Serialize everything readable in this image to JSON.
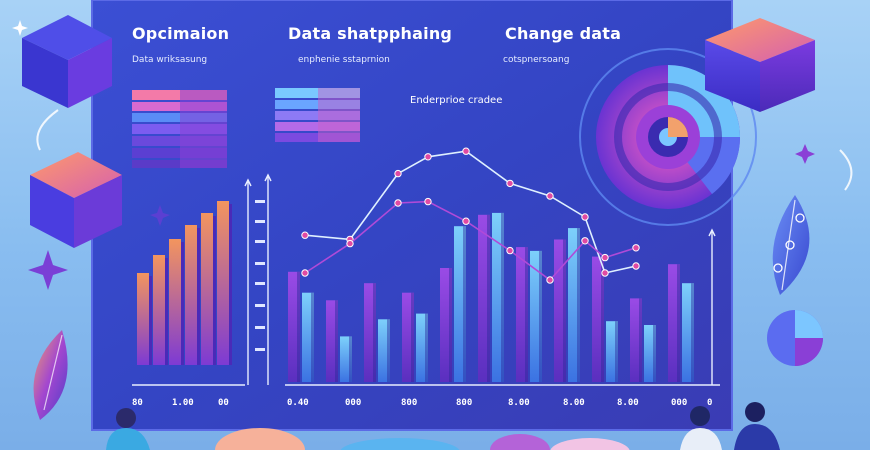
{
  "headings": {
    "left_title": "Opcimaion",
    "left_sub": "Data wriksasung",
    "mid_title": "Data shatpphaing",
    "mid_sub": "enphenie sstaprnion",
    "right_title": "Change data",
    "right_sub": "cotspnersoang"
  },
  "chart_label": "Enderprioe cradee",
  "x_ticks": [
    "80",
    "1.00",
    "00",
    "0.40",
    "000",
    "800",
    "800",
    "8.00",
    "8.00",
    "8.00",
    "000",
    "0"
  ],
  "chart_data": [
    {
      "type": "bar",
      "values": [
        0.46,
        0.55,
        0.63,
        0.7,
        0.76,
        0.82
      ],
      "ylim": [
        0,
        1
      ]
    },
    {
      "type": "bar",
      "series": [
        {
          "values": [
            0.58,
            0.43,
            0.52,
            0.47,
            0.6,
            0.88,
            0.71,
            0.75,
            0.66,
            0.44,
            0.62
          ]
        },
        {
          "values": [
            0.47,
            0.24,
            0.33,
            0.36,
            0.82,
            0.89,
            0.69,
            0.81,
            0.32,
            0.3,
            0.52
          ]
        }
      ],
      "ylim": [
        0,
        1
      ]
    },
    {
      "type": "line",
      "series": [
        {
          "x": [
            0,
            1,
            2,
            3,
            4,
            5,
            6,
            7,
            8,
            9
          ],
          "y": [
            0.82,
            0.79,
            1.26,
            1.38,
            1.42,
            1.19,
            1.1,
            0.95,
            0.55,
            0.6
          ]
        },
        {
          "x": [
            0,
            1,
            2,
            3,
            4,
            5,
            6,
            7,
            8,
            9
          ],
          "y": [
            0.55,
            0.76,
            1.05,
            1.06,
            0.92,
            0.71,
            0.5,
            0.78,
            0.66,
            0.73
          ]
        }
      ],
      "ylim": [
        0,
        1.6
      ]
    },
    {
      "type": "pie",
      "values": [
        0.28,
        0.22,
        0.5
      ]
    }
  ],
  "colors": {
    "panel": "#3a47c6",
    "panel_dark": "#2433a8",
    "bar_orange": "#f09a5e",
    "bar_purple": "#8a3fd6",
    "bar_blue": "#5aa6f2",
    "line_white": "#dff0ff",
    "line_purple": "#b04ad8",
    "accent_pink": "#e04aa3"
  }
}
